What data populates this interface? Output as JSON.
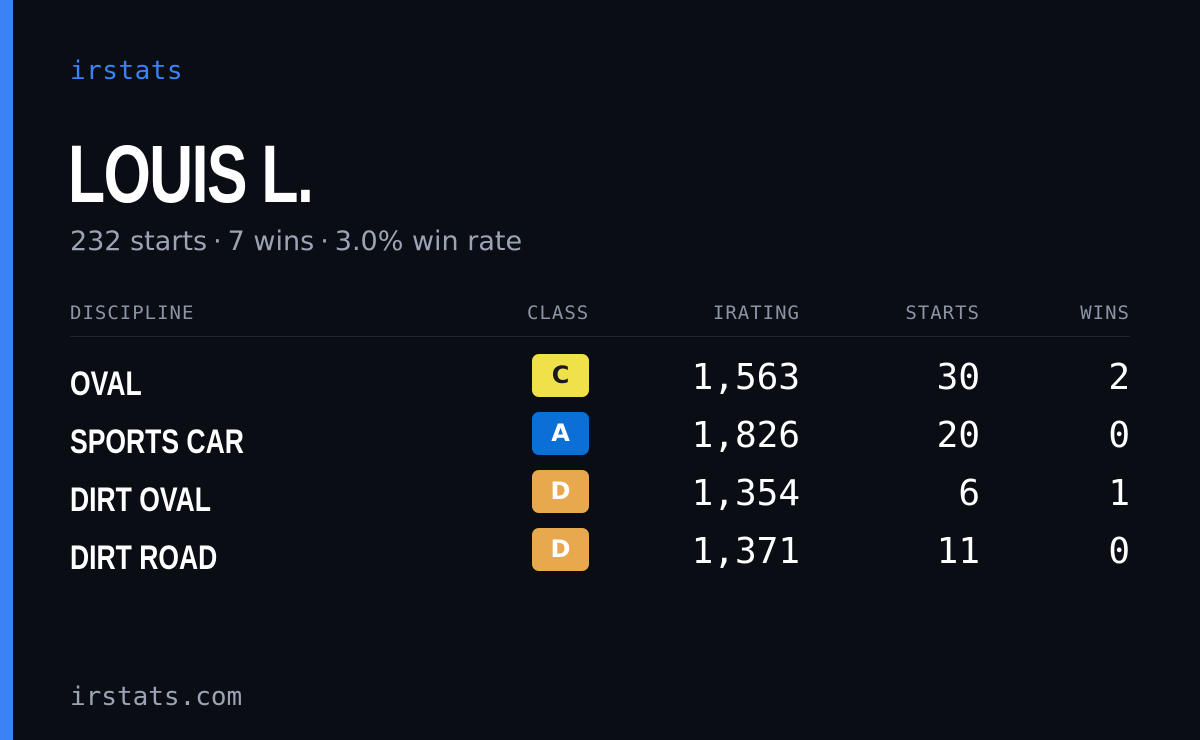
{
  "brand": "irstats",
  "driver": {
    "name": "LOUIS L.",
    "summary": {
      "starts": "232 starts",
      "wins": "7 wins",
      "win_rate": "3.0% win rate",
      "separator": "·"
    }
  },
  "table": {
    "columns": {
      "discipline": "DISCIPLINE",
      "class": "CLASS",
      "irating": "IRATING",
      "starts": "STARTS",
      "wins": "WINS"
    },
    "rows": [
      {
        "discipline": "OVAL",
        "class": "C",
        "class_color": "#f0e04a",
        "class_text_color": "#1a1a1a",
        "irating": "1,563",
        "starts": "30",
        "wins": "2"
      },
      {
        "discipline": "SPORTS CAR",
        "class": "A",
        "class_color": "#0a6fd6",
        "class_text_color": "#ffffff",
        "irating": "1,826",
        "starts": "20",
        "wins": "0"
      },
      {
        "discipline": "DIRT OVAL",
        "class": "D",
        "class_color": "#e8a84e",
        "class_text_color": "#ffffff",
        "irating": "1,354",
        "starts": "6",
        "wins": "1"
      },
      {
        "discipline": "DIRT ROAD",
        "class": "D",
        "class_color": "#e8a84e",
        "class_text_color": "#ffffff",
        "irating": "1,371",
        "starts": "11",
        "wins": "0"
      }
    ]
  },
  "footer": {
    "url": "irstats.com"
  },
  "colors": {
    "accent": "#3b82f6",
    "background": "#0a0d14"
  }
}
